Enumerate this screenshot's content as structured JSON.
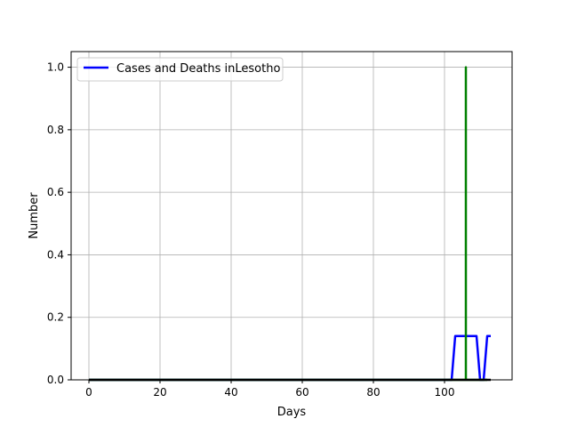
{
  "chart_data": {
    "type": "line",
    "xlabel": "Days",
    "ylabel": "Number",
    "xlim": [
      -5,
      119
    ],
    "ylim": [
      0,
      1.05
    ],
    "xticks": [
      0,
      20,
      40,
      60,
      80,
      100
    ],
    "yticks": [
      0.0,
      0.2,
      0.4,
      0.6,
      0.8,
      1.0
    ],
    "xtick_labels": [
      "0",
      "20",
      "40",
      "60",
      "80",
      "100"
    ],
    "ytick_labels": [
      "0.0",
      "0.2",
      "0.4",
      "0.6",
      "0.8",
      "1.0"
    ],
    "grid": true,
    "legend": {
      "placement": "top-left",
      "entries": [
        "Cases and Deaths inLesotho"
      ]
    },
    "series": [
      {
        "name": "Cases and Deaths inLesotho",
        "color": "#0000ff",
        "points": [
          [
            0,
            0
          ],
          [
            102,
            0
          ],
          [
            103,
            0.14
          ],
          [
            109,
            0.14
          ],
          [
            110,
            0
          ],
          [
            111,
            0
          ],
          [
            112,
            0.14
          ],
          [
            113,
            0.14
          ]
        ]
      },
      {
        "color": "#008000",
        "points": [
          [
            0,
            0
          ],
          [
            106,
            0
          ],
          [
            106,
            1.0
          ],
          [
            106,
            0
          ],
          [
            112,
            0
          ]
        ]
      },
      {
        "color": "#000000",
        "points": [
          [
            0,
            0
          ],
          [
            113,
            0
          ]
        ]
      }
    ]
  }
}
